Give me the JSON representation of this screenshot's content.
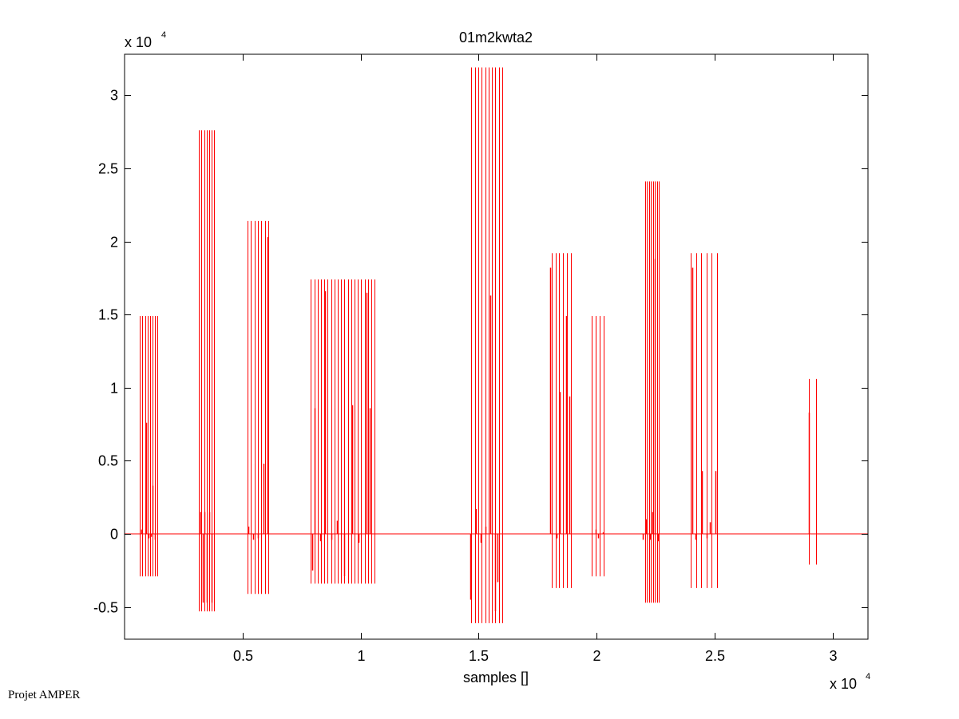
{
  "footer": {
    "text": "Projet AMPER"
  },
  "chart_data": {
    "type": "line",
    "title": "01m2kwta2",
    "xlabel": "samples []",
    "ylabel": "",
    "x_exponent_label": "x 10",
    "x_exponent_power": "4",
    "y_exponent_label": "x 10",
    "y_exponent_power": "4",
    "xlim": [
      0,
      31500
    ],
    "ylim": [
      -7200,
      32800
    ],
    "xticks": [
      5000,
      10000,
      15000,
      20000,
      25000,
      30000
    ],
    "xtick_labels": [
      "0.5",
      "1",
      "1.5",
      "2",
      "2.5",
      "3"
    ],
    "yticks": [
      -5000,
      0,
      5000,
      10000,
      15000,
      20000,
      25000,
      30000
    ],
    "ytick_labels": [
      "-0.5",
      "0",
      "0.5",
      "1",
      "1.5",
      "2",
      "2.5",
      "3"
    ],
    "grid": false,
    "color": "#ff0000",
    "baseline": 0,
    "bursts": [
      {
        "x_start": 650,
        "x_end": 1400,
        "count": 8,
        "max": 14900,
        "min": -2900,
        "inner": [
          {
            "x": 700,
            "y": 300
          },
          {
            "x": 900,
            "y": 7600
          },
          {
            "x": 1000,
            "y": -300
          },
          {
            "x": 1100,
            "y": -200
          },
          {
            "x": 1200,
            "y": 3300
          },
          {
            "x": 1300,
            "y": -400
          }
        ]
      },
      {
        "x_start": 3150,
        "x_end": 3800,
        "count": 7,
        "max": 27600,
        "min": -5300,
        "inner": [
          {
            "x": 3200,
            "y": 1500
          },
          {
            "x": 3300,
            "y": -4700
          },
          {
            "x": 3400,
            "y": 1500
          },
          {
            "x": 3500,
            "y": -4700
          },
          {
            "x": 3600,
            "y": 1500
          },
          {
            "x": 3700,
            "y": -4700
          }
        ]
      },
      {
        "x_start": 5200,
        "x_end": 6100,
        "count": 7,
        "max": 21400,
        "min": -4100,
        "inner": [
          {
            "x": 5250,
            "y": 500
          },
          {
            "x": 5450,
            "y": -400
          },
          {
            "x": 5650,
            "y": -300
          },
          {
            "x": 5900,
            "y": 4800
          },
          {
            "x": 6050,
            "y": 20300
          }
        ]
      },
      {
        "x_start": 7900,
        "x_end": 10600,
        "count": 20,
        "max": 17400,
        "min": -3400,
        "inner": [
          {
            "x": 7950,
            "y": -2500
          },
          {
            "x": 8050,
            "y": 8600
          },
          {
            "x": 8300,
            "y": -500
          },
          {
            "x": 8500,
            "y": 16600
          },
          {
            "x": 8750,
            "y": -400
          },
          {
            "x": 9000,
            "y": 900
          },
          {
            "x": 9300,
            "y": -2900
          },
          {
            "x": 9650,
            "y": 8800
          },
          {
            "x": 9900,
            "y": -600
          },
          {
            "x": 10250,
            "y": 16500
          },
          {
            "x": 10400,
            "y": 8600
          }
        ]
      },
      {
        "x_start": 14700,
        "x_end": 16000,
        "count": 10,
        "max": 31900,
        "min": -6100,
        "inner": [
          {
            "x": 14650,
            "y": -4500
          },
          {
            "x": 14900,
            "y": 1700
          },
          {
            "x": 15100,
            "y": -600
          },
          {
            "x": 15300,
            "y": 500
          },
          {
            "x": 15500,
            "y": 16300
          },
          {
            "x": 15700,
            "y": -5300
          },
          {
            "x": 15800,
            "y": -3300
          }
        ]
      },
      {
        "x_start": 18100,
        "x_end": 18900,
        "count": 6,
        "max": 19200,
        "min": -3700,
        "inner": [
          {
            "x": 18050,
            "y": 18200
          },
          {
            "x": 18300,
            "y": -300
          },
          {
            "x": 18450,
            "y": 9700
          },
          {
            "x": 18700,
            "y": 14900
          },
          {
            "x": 18850,
            "y": 9400
          }
        ]
      },
      {
        "x_start": 19800,
        "x_end": 20300,
        "count": 4,
        "max": 14900,
        "min": -2900,
        "inner": [
          {
            "x": 19950,
            "y": 300
          },
          {
            "x": 20050,
            "y": -300
          },
          {
            "x": 20250,
            "y": 100
          }
        ]
      },
      {
        "x_start": 22050,
        "x_end": 22650,
        "count": 8,
        "max": 24100,
        "min": -4700,
        "inner": [
          {
            "x": 21950,
            "y": -400
          },
          {
            "x": 22100,
            "y": 1000
          },
          {
            "x": 22250,
            "y": -400
          },
          {
            "x": 22350,
            "y": 1500
          },
          {
            "x": 22450,
            "y": 18800
          },
          {
            "x": 22600,
            "y": -500
          }
        ]
      },
      {
        "x_start": 24000,
        "x_end": 25100,
        "count": 6,
        "max": 19200,
        "min": -3700,
        "inner": [
          {
            "x": 24050,
            "y": 18200
          },
          {
            "x": 24200,
            "y": -400
          },
          {
            "x": 24450,
            "y": 4300
          },
          {
            "x": 24650,
            "y": -300
          },
          {
            "x": 24800,
            "y": 800
          },
          {
            "x": 25050,
            "y": 4300
          }
        ]
      },
      {
        "x_start": 29000,
        "x_end": 29300,
        "count": 2,
        "max": 10600,
        "min": -2100,
        "inner": [
          {
            "x": 29000,
            "y": 8300
          }
        ]
      }
    ]
  }
}
